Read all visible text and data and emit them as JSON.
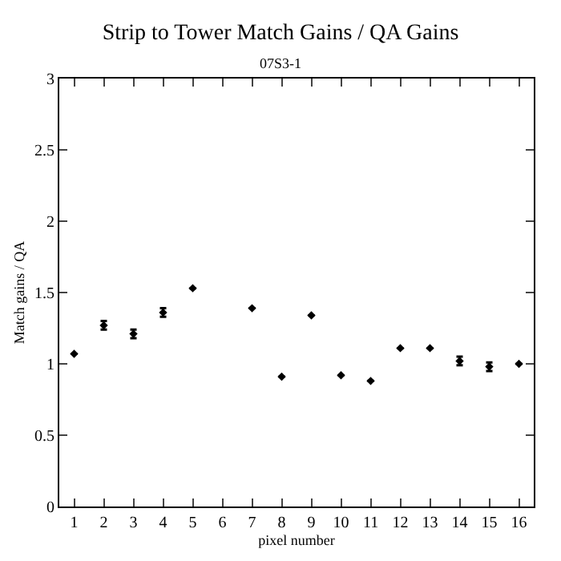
{
  "chart_data": {
    "type": "scatter",
    "title": "Strip to Tower Match Gains / QA Gains",
    "subtitle": "07S3-1",
    "xlabel": "pixel number",
    "ylabel": "Match gains / QA",
    "x": [
      1,
      2,
      3,
      4,
      5,
      6,
      7,
      8,
      9,
      10,
      11,
      12,
      13,
      14,
      15,
      16
    ],
    "series": [
      {
        "color": "#000000",
        "values": [
          1.07,
          1.27,
          1.21,
          1.36,
          1.53,
          null,
          1.39,
          0.91,
          1.34,
          0.92,
          0.88,
          1.11,
          1.11,
          1.02,
          0.98,
          1.0
        ],
        "errors": [
          null,
          0.03,
          0.03,
          0.03,
          null,
          null,
          null,
          null,
          null,
          null,
          null,
          null,
          null,
          0.03,
          0.03,
          null
        ]
      }
    ],
    "xlim": [
      0.5,
      16.5
    ],
    "xticks": [
      1,
      2,
      3,
      4,
      5,
      6,
      7,
      8,
      9,
      10,
      11,
      12,
      13,
      14,
      15,
      16
    ],
    "ylim": [
      0,
      3
    ],
    "yticks": [
      0,
      0.5,
      1,
      1.5,
      2,
      2.5,
      3
    ],
    "marker": "diamond"
  }
}
